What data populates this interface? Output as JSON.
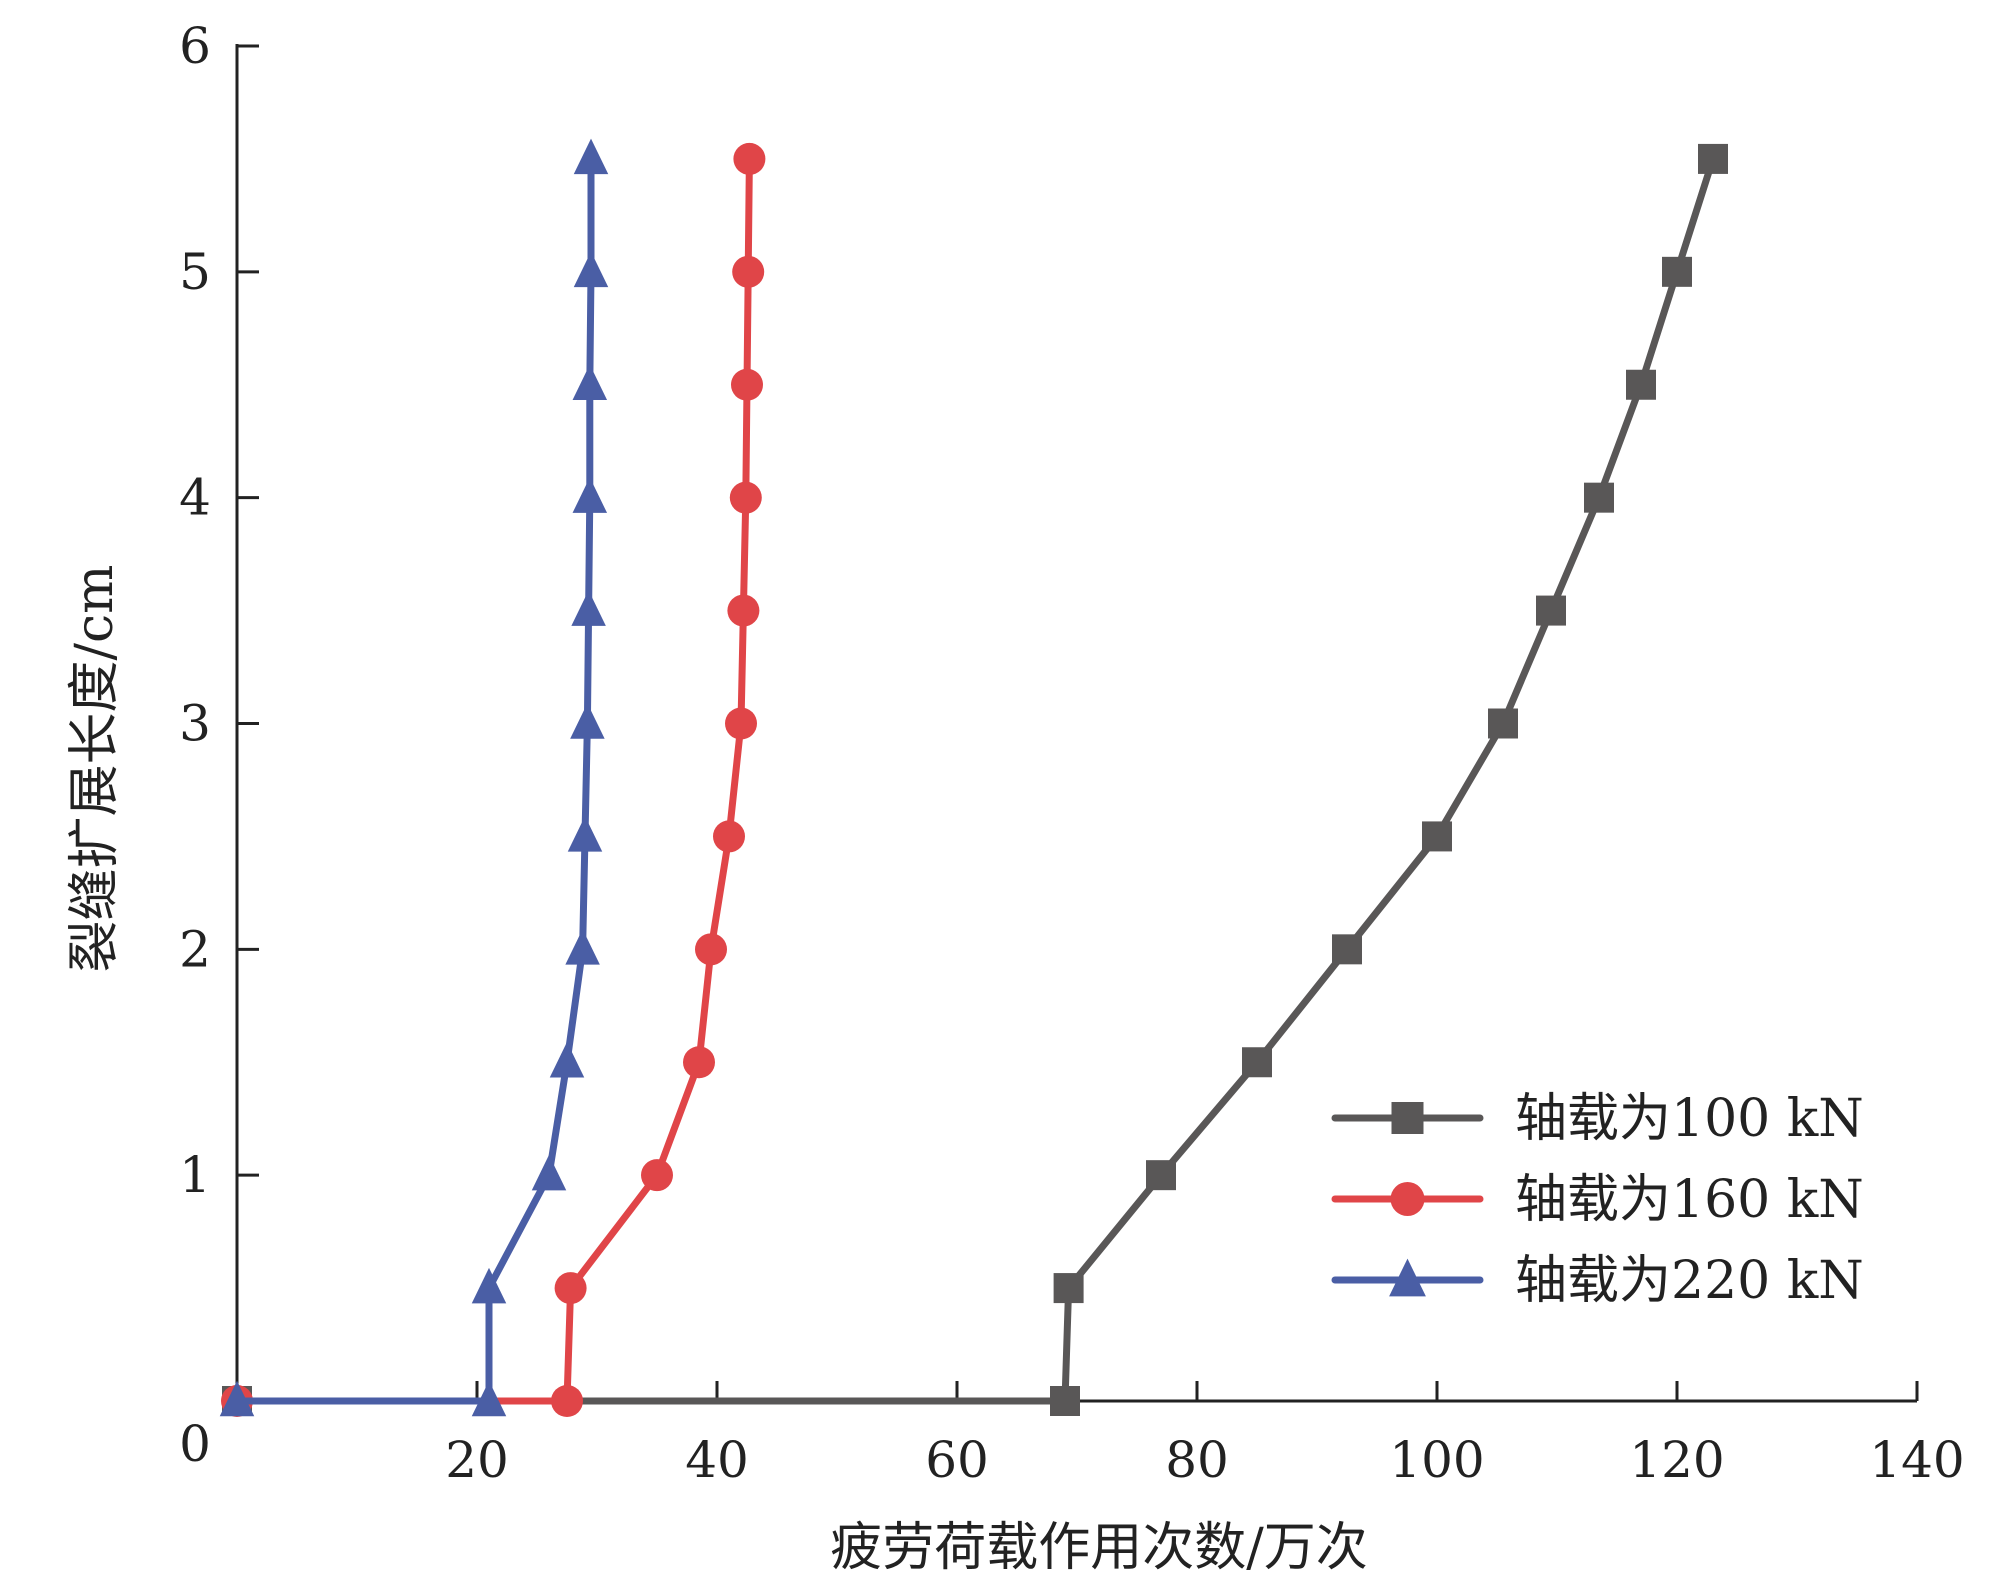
{
  "chart_data": {
    "type": "line",
    "title": "",
    "xlabel": "疲劳荷载作用次数/万次",
    "ylabel": "裂缝扩展长度/cm",
    "xlim": [
      0,
      140
    ],
    "ylim": [
      0,
      6
    ],
    "xticks": [
      20,
      40,
      60,
      80,
      100,
      120,
      140
    ],
    "yticks": [
      1,
      2,
      3,
      4,
      5,
      6
    ],
    "origin_label": "0",
    "grid": false,
    "legend_position": "bottom-right",
    "series": [
      {
        "name": "轴载为100 kN",
        "color": "#595757",
        "marker": "square",
        "x": [
          0,
          69.0,
          69.3,
          77.0,
          85.0,
          92.5,
          100.0,
          105.5,
          109.5,
          113.5,
          117.0,
          120.0,
          123.0
        ],
        "y": [
          0,
          0,
          0.5,
          1.0,
          1.5,
          2.0,
          2.5,
          3.0,
          3.5,
          4.0,
          4.5,
          5.0,
          5.5
        ]
      },
      {
        "name": "轴载为160 kN",
        "color": "#e04548",
        "marker": "circle",
        "x": [
          0,
          27.5,
          27.8,
          35.0,
          38.5,
          39.5,
          41.0,
          42.0,
          42.2,
          42.4,
          42.5,
          42.6,
          42.7
        ],
        "y": [
          0,
          0,
          0.5,
          1.0,
          1.5,
          2.0,
          2.5,
          3.0,
          3.5,
          4.0,
          4.5,
          5.0,
          5.5
        ]
      },
      {
        "name": "轴载为220 kN",
        "color": "#4a5ea5",
        "marker": "triangle",
        "x": [
          0,
          21.0,
          21.0,
          26.0,
          27.5,
          28.8,
          29.0,
          29.2,
          29.3,
          29.4,
          29.4,
          29.5,
          29.5
        ],
        "y": [
          0,
          0,
          0.5,
          1.0,
          1.5,
          2.0,
          2.5,
          3.0,
          3.5,
          4.0,
          4.5,
          5.0,
          5.5
        ]
      }
    ]
  }
}
